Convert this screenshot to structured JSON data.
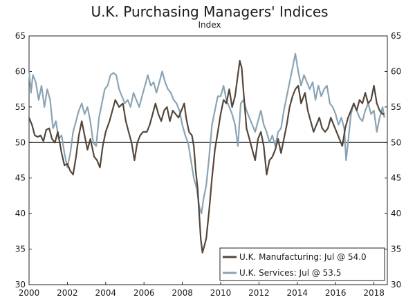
{
  "chart_data": {
    "type": "line",
    "title": "U.K. Purchasing Managers' Indices",
    "subtitle": "Index",
    "xlim": [
      2000.0,
      2018.7
    ],
    "ylim": [
      30,
      65
    ],
    "y_ticks": [
      30,
      35,
      40,
      45,
      50,
      55,
      60,
      65
    ],
    "x_ticks": [
      2000,
      2002,
      2004,
      2006,
      2008,
      2010,
      2012,
      2014,
      2016,
      2018
    ],
    "x_tick_labels": [
      "2000",
      "2002",
      "2004",
      "2006",
      "2008",
      "2010",
      "2012",
      "2014",
      "2016",
      "2018"
    ],
    "reference_line": 50,
    "grid": false,
    "dual_y_axis": true,
    "legend_position": "bottom-right",
    "legend": [
      "U.K. Manufacturing: Jul @ 54.0",
      "U.K. Services: Jul @ 53.5"
    ],
    "series": [
      {
        "name": "U.K. Manufacturing: Jul @ 54.0",
        "color": "#54463a",
        "points": [
          [
            2000.0,
            53.5
          ],
          [
            2000.15,
            52.5
          ],
          [
            2000.3,
            51.0
          ],
          [
            2000.45,
            50.8
          ],
          [
            2000.6,
            51.0
          ],
          [
            2000.75,
            50.2
          ],
          [
            2000.9,
            51.8
          ],
          [
            2001.05,
            52.0
          ],
          [
            2001.2,
            50.5
          ],
          [
            2001.35,
            50.0
          ],
          [
            2001.5,
            51.5
          ],
          [
            2001.7,
            48.5
          ],
          [
            2001.85,
            46.8
          ],
          [
            2002.0,
            47.0
          ],
          [
            2002.15,
            46.0
          ],
          [
            2002.3,
            45.5
          ],
          [
            2002.45,
            48.0
          ],
          [
            2002.6,
            51.0
          ],
          [
            2002.75,
            53.0
          ],
          [
            2002.9,
            51.0
          ],
          [
            2003.05,
            49.0
          ],
          [
            2003.2,
            50.5
          ],
          [
            2003.4,
            48.0
          ],
          [
            2003.55,
            47.5
          ],
          [
            2003.7,
            46.5
          ],
          [
            2003.85,
            49.5
          ],
          [
            2004.0,
            51.5
          ],
          [
            2004.2,
            53.0
          ],
          [
            2004.35,
            54.5
          ],
          [
            2004.5,
            56.0
          ],
          [
            2004.7,
            55.0
          ],
          [
            2004.9,
            55.5
          ],
          [
            2005.05,
            53.0
          ],
          [
            2005.2,
            51.5
          ],
          [
            2005.35,
            50.0
          ],
          [
            2005.5,
            47.5
          ],
          [
            2005.65,
            50.0
          ],
          [
            2005.8,
            51.0
          ],
          [
            2005.95,
            51.5
          ],
          [
            2006.15,
            51.5
          ],
          [
            2006.3,
            52.5
          ],
          [
            2006.45,
            54.0
          ],
          [
            2006.6,
            55.5
          ],
          [
            2006.75,
            54.0
          ],
          [
            2006.9,
            53.0
          ],
          [
            2007.05,
            54.5
          ],
          [
            2007.2,
            55.0
          ],
          [
            2007.35,
            53.0
          ],
          [
            2007.5,
            54.5
          ],
          [
            2007.65,
            54.0
          ],
          [
            2007.8,
            53.5
          ],
          [
            2007.95,
            54.5
          ],
          [
            2008.1,
            55.5
          ],
          [
            2008.2,
            53.5
          ],
          [
            2008.35,
            51.5
          ],
          [
            2008.5,
            51.0
          ],
          [
            2008.6,
            49.5
          ],
          [
            2008.7,
            46.0
          ],
          [
            2008.8,
            43.5
          ],
          [
            2008.88,
            40.0
          ],
          [
            2008.96,
            36.5
          ],
          [
            2009.05,
            34.5
          ],
          [
            2009.15,
            35.5
          ],
          [
            2009.25,
            36.5
          ],
          [
            2009.4,
            40.5
          ],
          [
            2009.55,
            45.0
          ],
          [
            2009.7,
            49.0
          ],
          [
            2009.85,
            51.5
          ],
          [
            2010.0,
            54.0
          ],
          [
            2010.15,
            56.0
          ],
          [
            2010.3,
            55.5
          ],
          [
            2010.45,
            57.5
          ],
          [
            2010.6,
            55.0
          ],
          [
            2010.75,
            56.5
          ],
          [
            2010.9,
            59.5
          ],
          [
            2011.0,
            61.5
          ],
          [
            2011.1,
            60.5
          ],
          [
            2011.2,
            57.0
          ],
          [
            2011.35,
            52.0
          ],
          [
            2011.5,
            50.5
          ],
          [
            2011.65,
            49.0
          ],
          [
            2011.8,
            47.5
          ],
          [
            2011.95,
            50.5
          ],
          [
            2012.1,
            51.5
          ],
          [
            2012.25,
            49.5
          ],
          [
            2012.4,
            45.5
          ],
          [
            2012.55,
            47.5
          ],
          [
            2012.7,
            48.0
          ],
          [
            2012.85,
            49.0
          ],
          [
            2013.0,
            50.5
          ],
          [
            2013.15,
            48.5
          ],
          [
            2013.3,
            50.5
          ],
          [
            2013.45,
            52.5
          ],
          [
            2013.6,
            55.0
          ],
          [
            2013.75,
            56.5
          ],
          [
            2013.9,
            57.5
          ],
          [
            2014.05,
            58.0
          ],
          [
            2014.2,
            55.5
          ],
          [
            2014.4,
            57.0
          ],
          [
            2014.55,
            54.5
          ],
          [
            2014.7,
            53.0
          ],
          [
            2014.85,
            51.5
          ],
          [
            2015.0,
            52.5
          ],
          [
            2015.15,
            53.5
          ],
          [
            2015.3,
            52.0
          ],
          [
            2015.45,
            51.5
          ],
          [
            2015.6,
            52.0
          ],
          [
            2015.75,
            53.5
          ],
          [
            2015.9,
            52.5
          ],
          [
            2016.05,
            51.5
          ],
          [
            2016.2,
            50.5
          ],
          [
            2016.35,
            49.5
          ],
          [
            2016.5,
            52.0
          ],
          [
            2016.65,
            53.5
          ],
          [
            2016.8,
            54.5
          ],
          [
            2016.95,
            55.5
          ],
          [
            2017.1,
            54.5
          ],
          [
            2017.25,
            56.0
          ],
          [
            2017.4,
            55.5
          ],
          [
            2017.55,
            57.0
          ],
          [
            2017.7,
            55.5
          ],
          [
            2017.85,
            56.0
          ],
          [
            2018.0,
            58.0
          ],
          [
            2018.15,
            55.5
          ],
          [
            2018.3,
            54.5
          ],
          [
            2018.45,
            54.0
          ],
          [
            2018.55,
            54.0
          ]
        ]
      },
      {
        "name": "U.K. Services: Jul @ 53.5",
        "color": "#8aa4b4",
        "points": [
          [
            2000.0,
            60.0
          ],
          [
            2000.1,
            57.0
          ],
          [
            2000.2,
            59.5
          ],
          [
            2000.35,
            58.5
          ],
          [
            2000.5,
            56.0
          ],
          [
            2000.65,
            58.0
          ],
          [
            2000.8,
            55.0
          ],
          [
            2000.95,
            57.5
          ],
          [
            2001.1,
            56.0
          ],
          [
            2001.25,
            52.0
          ],
          [
            2001.4,
            53.0
          ],
          [
            2001.55,
            50.5
          ],
          [
            2001.7,
            51.0
          ],
          [
            2001.85,
            48.5
          ],
          [
            2002.0,
            46.5
          ],
          [
            2002.15,
            48.5
          ],
          [
            2002.3,
            51.5
          ],
          [
            2002.45,
            53.0
          ],
          [
            2002.6,
            54.5
          ],
          [
            2002.75,
            55.5
          ],
          [
            2002.9,
            54.0
          ],
          [
            2003.05,
            55.0
          ],
          [
            2003.2,
            53.0
          ],
          [
            2003.35,
            50.0
          ],
          [
            2003.5,
            49.5
          ],
          [
            2003.65,
            53.5
          ],
          [
            2003.8,
            55.5
          ],
          [
            2003.95,
            57.5
          ],
          [
            2004.1,
            58.0
          ],
          [
            2004.25,
            59.5
          ],
          [
            2004.4,
            59.8
          ],
          [
            2004.55,
            59.5
          ],
          [
            2004.7,
            57.5
          ],
          [
            2004.85,
            56.5
          ],
          [
            2005.0,
            55.5
          ],
          [
            2005.15,
            56.0
          ],
          [
            2005.3,
            55.0
          ],
          [
            2005.45,
            57.0
          ],
          [
            2005.6,
            56.0
          ],
          [
            2005.75,
            55.0
          ],
          [
            2005.9,
            56.5
          ],
          [
            2006.05,
            58.0
          ],
          [
            2006.2,
            59.5
          ],
          [
            2006.35,
            58.0
          ],
          [
            2006.5,
            58.5
          ],
          [
            2006.65,
            57.0
          ],
          [
            2006.8,
            58.5
          ],
          [
            2006.95,
            60.0
          ],
          [
            2007.1,
            58.5
          ],
          [
            2007.25,
            57.5
          ],
          [
            2007.4,
            57.0
          ],
          [
            2007.55,
            56.0
          ],
          [
            2007.7,
            55.5
          ],
          [
            2007.85,
            54.5
          ],
          [
            2008.0,
            52.5
          ],
          [
            2008.15,
            51.0
          ],
          [
            2008.3,
            50.0
          ],
          [
            2008.45,
            47.5
          ],
          [
            2008.6,
            45.0
          ],
          [
            2008.75,
            43.5
          ],
          [
            2008.88,
            41.0
          ],
          [
            2009.0,
            40.0
          ],
          [
            2009.1,
            42.0
          ],
          [
            2009.25,
            44.0
          ],
          [
            2009.4,
            48.0
          ],
          [
            2009.55,
            52.5
          ],
          [
            2009.7,
            54.5
          ],
          [
            2009.85,
            56.5
          ],
          [
            2010.0,
            56.5
          ],
          [
            2010.15,
            58.0
          ],
          [
            2010.3,
            56.0
          ],
          [
            2010.45,
            55.0
          ],
          [
            2010.6,
            54.0
          ],
          [
            2010.75,
            52.5
          ],
          [
            2010.9,
            49.5
          ],
          [
            2011.05,
            55.5
          ],
          [
            2011.2,
            56.0
          ],
          [
            2011.35,
            54.5
          ],
          [
            2011.5,
            53.5
          ],
          [
            2011.65,
            52.5
          ],
          [
            2011.8,
            51.5
          ],
          [
            2011.95,
            53.0
          ],
          [
            2012.1,
            54.5
          ],
          [
            2012.25,
            52.5
          ],
          [
            2012.4,
            51.5
          ],
          [
            2012.55,
            50.0
          ],
          [
            2012.7,
            51.0
          ],
          [
            2012.85,
            49.5
          ],
          [
            2013.0,
            51.5
          ],
          [
            2013.15,
            52.0
          ],
          [
            2013.3,
            54.5
          ],
          [
            2013.45,
            56.5
          ],
          [
            2013.6,
            58.5
          ],
          [
            2013.75,
            60.5
          ],
          [
            2013.9,
            62.5
          ],
          [
            2014.05,
            60.0
          ],
          [
            2014.2,
            58.0
          ],
          [
            2014.35,
            59.5
          ],
          [
            2014.5,
            58.5
          ],
          [
            2014.65,
            57.5
          ],
          [
            2014.8,
            58.5
          ],
          [
            2014.95,
            56.0
          ],
          [
            2015.1,
            58.0
          ],
          [
            2015.25,
            56.5
          ],
          [
            2015.4,
            57.5
          ],
          [
            2015.55,
            58.0
          ],
          [
            2015.7,
            55.5
          ],
          [
            2015.85,
            55.0
          ],
          [
            2016.0,
            54.0
          ],
          [
            2016.15,
            52.5
          ],
          [
            2016.3,
            53.5
          ],
          [
            2016.45,
            52.0
          ],
          [
            2016.55,
            47.5
          ],
          [
            2016.65,
            50.0
          ],
          [
            2016.8,
            54.0
          ],
          [
            2016.95,
            55.5
          ],
          [
            2017.1,
            54.5
          ],
          [
            2017.25,
            53.5
          ],
          [
            2017.4,
            53.0
          ],
          [
            2017.55,
            54.5
          ],
          [
            2017.7,
            55.5
          ],
          [
            2017.85,
            54.0
          ],
          [
            2018.0,
            54.5
          ],
          [
            2018.15,
            51.5
          ],
          [
            2018.3,
            53.5
          ],
          [
            2018.45,
            55.0
          ],
          [
            2018.55,
            53.5
          ]
        ]
      }
    ]
  }
}
